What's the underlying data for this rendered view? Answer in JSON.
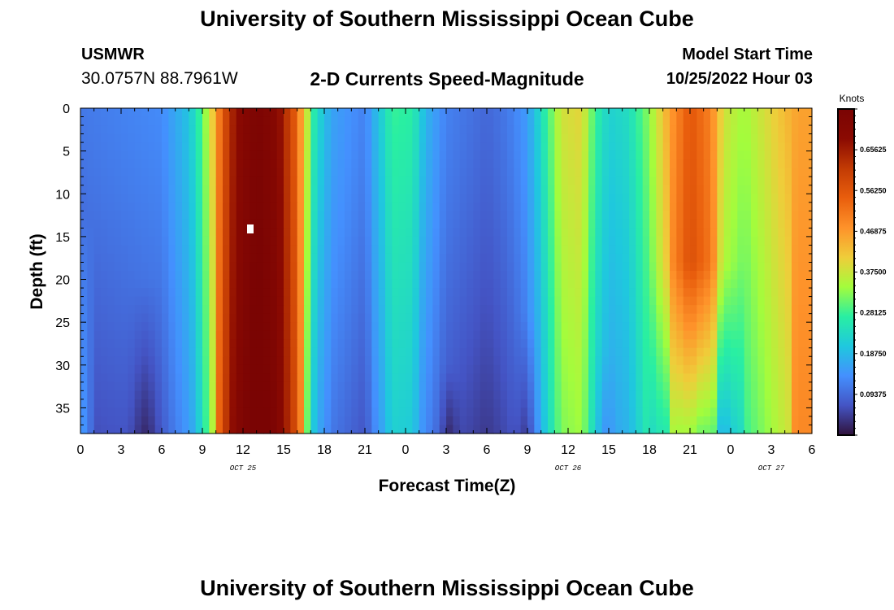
{
  "header": {
    "title": "University of Southern Mississippi Ocean Cube",
    "station_name": "USMWR",
    "station_coords": "30.0757N  88.7961W",
    "subtitle": "2-D Currents Speed-Magnitude",
    "model_start_label": "Model Start Time",
    "model_start_value": "10/25/2022 Hour 03"
  },
  "footer": {
    "title": "University of Southern Mississippi Ocean Cube"
  },
  "colors": {
    "colormap": [
      "#30123b",
      "#4454c4",
      "#4490fe",
      "#1fc8de",
      "#29efa2",
      "#a4fc3c",
      "#efcd3a",
      "#fe922a",
      "#e95e0d",
      "#c23b04",
      "#8b0a02",
      "#7a0403"
    ]
  },
  "chart_data": {
    "type": "heatmap",
    "title": "2-D Currents Speed-Magnitude",
    "xlabel": "Forecast Time(Z)",
    "ylabel": "Depth (ft)",
    "x_start_hour": 0,
    "x_end_hour": 54,
    "x_ticks": [
      {
        "hour": 0,
        "label": "0"
      },
      {
        "hour": 3,
        "label": "3"
      },
      {
        "hour": 6,
        "label": "6"
      },
      {
        "hour": 9,
        "label": "9"
      },
      {
        "hour": 12,
        "label": "12"
      },
      {
        "hour": 15,
        "label": "15"
      },
      {
        "hour": 18,
        "label": "18"
      },
      {
        "hour": 21,
        "label": "21"
      },
      {
        "hour": 24,
        "label": "0"
      },
      {
        "hour": 27,
        "label": "3"
      },
      {
        "hour": 30,
        "label": "6"
      },
      {
        "hour": 33,
        "label": "9"
      },
      {
        "hour": 36,
        "label": "12"
      },
      {
        "hour": 39,
        "label": "15"
      },
      {
        "hour": 42,
        "label": "18"
      },
      {
        "hour": 45,
        "label": "21"
      },
      {
        "hour": 48,
        "label": "0"
      },
      {
        "hour": 51,
        "label": "3"
      },
      {
        "hour": 54,
        "label": "6"
      }
    ],
    "date_labels": [
      {
        "hour": 12,
        "label": "OCT 25"
      },
      {
        "hour": 36,
        "label": "OCT 26"
      },
      {
        "hour": 51,
        "label": "OCT 27"
      }
    ],
    "y_range": [
      0,
      38
    ],
    "y_ticks": [
      {
        "depth": 0,
        "label": "0"
      },
      {
        "depth": 5,
        "label": "5"
      },
      {
        "depth": 10,
        "label": "10"
      },
      {
        "depth": 15,
        "label": "15"
      },
      {
        "depth": 20,
        "label": "20"
      },
      {
        "depth": 25,
        "label": "25"
      },
      {
        "depth": 30,
        "label": "30"
      },
      {
        "depth": 35,
        "label": "35"
      }
    ],
    "surface_speed_knots": [
      [
        0,
        0.11
      ],
      [
        3,
        0.12
      ],
      [
        6,
        0.13
      ],
      [
        8,
        0.2
      ],
      [
        9,
        0.3
      ],
      [
        9.8,
        0.42
      ],
      [
        10.5,
        0.56
      ],
      [
        11.5,
        0.68
      ],
      [
        13,
        0.74
      ],
      [
        14.5,
        0.7
      ],
      [
        15.8,
        0.56
      ],
      [
        16.6,
        0.4
      ],
      [
        17.3,
        0.25
      ],
      [
        18.5,
        0.16
      ],
      [
        21,
        0.12
      ],
      [
        22,
        0.2
      ],
      [
        23,
        0.28
      ],
      [
        24.5,
        0.27
      ],
      [
        25.5,
        0.18
      ],
      [
        27,
        0.12
      ],
      [
        30,
        0.09
      ],
      [
        31.5,
        0.11
      ],
      [
        33,
        0.15
      ],
      [
        34,
        0.24
      ],
      [
        35.5,
        0.38
      ],
      [
        37,
        0.4
      ],
      [
        38,
        0.28
      ],
      [
        39,
        0.22
      ],
      [
        40.5,
        0.24
      ],
      [
        42,
        0.33
      ],
      [
        43.5,
        0.46
      ],
      [
        45,
        0.56
      ],
      [
        46.5,
        0.5
      ],
      [
        47.5,
        0.38
      ],
      [
        49,
        0.34
      ],
      [
        51,
        0.4
      ],
      [
        53,
        0.46
      ],
      [
        54,
        0.46
      ]
    ],
    "colorbar": {
      "label": "Knots",
      "min": 0,
      "max": 0.75,
      "tick_values": [
        0.09375,
        0.1875,
        0.28125,
        0.375,
        0.46875,
        0.5625,
        0.65625
      ],
      "tick_labels": [
        "0.09375",
        "0.18750",
        "0.28125",
        "0.37500",
        "0.46875",
        "0.56250",
        "0.65625"
      ]
    }
  }
}
